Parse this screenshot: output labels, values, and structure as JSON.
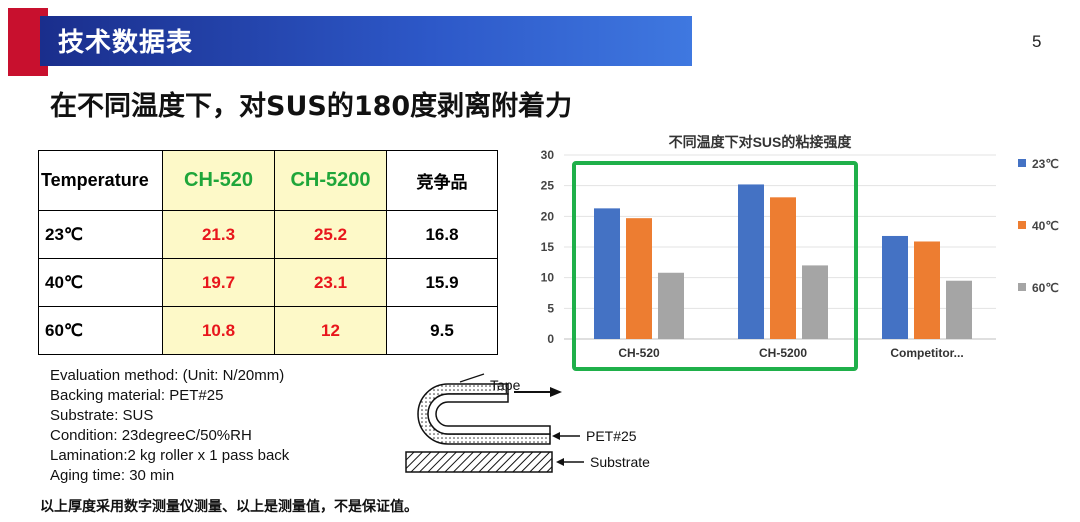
{
  "header": {
    "title": "技术数据表",
    "page_number": "5"
  },
  "subtitle": "在不同温度下，对SUS的180度剥离附着力",
  "table": {
    "headers": [
      "Temperature",
      "CH-520",
      "CH-5200",
      "竞争品"
    ],
    "rows": [
      {
        "temp": "23℃",
        "ch520": "21.3",
        "ch5200": "25.2",
        "competitor": "16.8"
      },
      {
        "temp": "40℃",
        "ch520": "19.7",
        "ch5200": "23.1",
        "competitor": "15.9"
      },
      {
        "temp": "60℃",
        "ch520": "10.8",
        "ch5200": "12",
        "competitor": "9.5"
      }
    ]
  },
  "notes": [
    "Evaluation method: (Unit: N/20mm)",
    "Backing material: PET#25",
    "Substrate: SUS",
    "Condition: 23degreeC/50%RH",
    "Lamination:2 kg roller x 1 pass back",
    "Aging time: 30 min"
  ],
  "diagram": {
    "tape_label": "Tape",
    "pet_label": "PET#25",
    "substrate_label": "Substrate"
  },
  "footnote": "以上厚度采用数字测量仪测量、以上是测量值，不是保证值。",
  "colors": {
    "series_23": "#4472c4",
    "series_40": "#ed7d31",
    "series_60": "#a5a5a5",
    "highlight": "#1fb04a",
    "ours_text": "#e8161c",
    "ours_header": "#1fa63a"
  },
  "chart_data": {
    "type": "bar",
    "title": "不同温度下对SUS的粘接强度",
    "categories": [
      "CH-520",
      "CH-5200",
      "Competitor..."
    ],
    "series": [
      {
        "name": "23℃",
        "values": [
          21.3,
          25.2,
          16.8
        ]
      },
      {
        "name": "40℃",
        "values": [
          19.7,
          23.1,
          15.9
        ]
      },
      {
        "name": "60℃",
        "values": [
          10.8,
          12,
          9.5
        ]
      }
    ],
    "yticks": [
      0,
      5,
      10,
      15,
      20,
      25,
      30
    ],
    "ylim": [
      0,
      30
    ],
    "grid": true,
    "legend": "right"
  }
}
